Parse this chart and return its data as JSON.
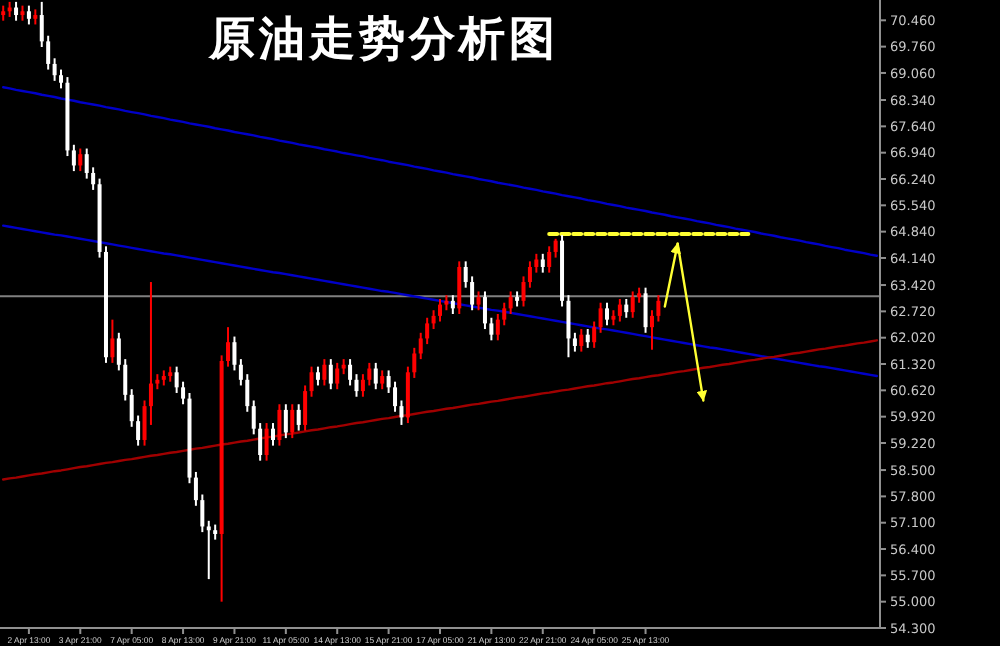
{
  "chart_data": {
    "type": "candlestick",
    "title": "原油走势分析图",
    "categories": [
      null,
      null,
      null,
      null,
      "2 Apr 13:00",
      null,
      null,
      null,
      null,
      null,
      null,
      null,
      "3 Apr 21:00",
      null,
      null,
      null,
      null,
      null,
      null,
      null,
      "7 Apr 05:00",
      null,
      null,
      null,
      null,
      null,
      null,
      null,
      "8 Apr 13:00",
      null,
      null,
      null,
      null,
      null,
      null,
      null,
      "9 Apr 21:00",
      null,
      null,
      null,
      null,
      null,
      null,
      null,
      "11 Apr 05:00",
      null,
      null,
      null,
      null,
      null,
      null,
      null,
      "14 Apr 13:00",
      null,
      null,
      null,
      null,
      null,
      null,
      null,
      "15 Apr 21:00",
      null,
      null,
      null,
      null,
      null,
      null,
      null,
      "17 Apr 05:00",
      null,
      null,
      null,
      null,
      null,
      null,
      null,
      "21 Apr 13:00",
      null,
      null,
      null,
      null,
      null,
      null,
      null,
      "22 Apr 21:00",
      null,
      null,
      null,
      null,
      null,
      null,
      null,
      "24 Apr 05:00",
      null,
      null,
      null,
      null,
      null,
      null,
      null,
      "25 Apr 13:00",
      null,
      null,
      null,
      null,
      null,
      null,
      null,
      null,
      null,
      null,
      null,
      null,
      null,
      null,
      null,
      null,
      null,
      null,
      null,
      null,
      null,
      null,
      null,
      null,
      null,
      null,
      null,
      null,
      null,
      null,
      null,
      null,
      null,
      null,
      null,
      null
    ],
    "ohlc": [
      [
        70.6,
        70.85,
        70.45,
        70.7
      ],
      [
        70.7,
        70.95,
        70.55,
        70.8
      ],
      [
        70.8,
        70.95,
        70.45,
        70.6
      ],
      [
        70.6,
        70.85,
        70.45,
        70.7
      ],
      [
        70.7,
        70.85,
        70.35,
        70.5
      ],
      [
        70.5,
        70.75,
        70.35,
        70.6
      ],
      [
        70.6,
        70.95,
        69.75,
        69.9
      ],
      [
        69.9,
        70.05,
        69.15,
        69.3
      ],
      [
        69.3,
        69.45,
        68.85,
        69.0
      ],
      [
        69.0,
        69.15,
        68.65,
        68.8
      ],
      [
        68.8,
        68.95,
        66.85,
        67.0
      ],
      [
        67.0,
        67.15,
        66.45,
        66.6
      ],
      [
        66.6,
        67.05,
        66.45,
        66.9
      ],
      [
        66.9,
        67.05,
        66.25,
        66.4
      ],
      [
        66.4,
        66.55,
        65.95,
        66.1
      ],
      [
        66.1,
        66.25,
        64.15,
        64.3
      ],
      [
        64.3,
        64.45,
        61.35,
        61.5
      ],
      [
        61.5,
        62.5,
        61.35,
        62.0
      ],
      [
        62.0,
        62.15,
        61.15,
        61.3
      ],
      [
        61.3,
        61.45,
        60.35,
        60.5
      ],
      [
        60.5,
        60.65,
        59.65,
        59.8
      ],
      [
        59.8,
        59.95,
        59.15,
        59.3
      ],
      [
        59.3,
        60.35,
        59.15,
        60.2
      ],
      [
        60.2,
        63.5,
        59.7,
        60.8
      ],
      [
        60.8,
        61.05,
        60.65,
        60.9
      ],
      [
        60.9,
        61.15,
        60.75,
        61.0
      ],
      [
        61.0,
        61.25,
        60.85,
        61.1
      ],
      [
        61.1,
        61.25,
        60.55,
        60.7
      ],
      [
        60.7,
        60.85,
        60.25,
        60.4
      ],
      [
        60.4,
        60.55,
        58.15,
        58.3
      ],
      [
        58.3,
        58.45,
        57.55,
        57.7
      ],
      [
        57.7,
        57.85,
        56.85,
        57.0
      ],
      [
        57.0,
        57.15,
        55.6,
        56.9
      ],
      [
        56.9,
        57.05,
        56.65,
        56.8
      ],
      [
        56.8,
        61.55,
        55.0,
        61.4
      ],
      [
        61.4,
        62.3,
        61.25,
        61.9
      ],
      [
        61.9,
        62.05,
        61.15,
        61.3
      ],
      [
        61.3,
        61.45,
        60.75,
        60.9
      ],
      [
        60.9,
        61.05,
        60.05,
        60.2
      ],
      [
        60.2,
        60.35,
        59.45,
        59.6
      ],
      [
        59.6,
        59.75,
        58.75,
        58.9
      ],
      [
        58.9,
        59.75,
        58.75,
        59.6
      ],
      [
        59.6,
        59.75,
        59.15,
        59.3
      ],
      [
        59.3,
        60.25,
        59.15,
        60.1
      ],
      [
        60.1,
        60.25,
        59.35,
        59.5
      ],
      [
        59.5,
        60.25,
        59.35,
        60.1
      ],
      [
        60.1,
        60.25,
        59.55,
        59.7
      ],
      [
        59.7,
        60.75,
        59.55,
        60.6
      ],
      [
        60.6,
        61.25,
        60.45,
        61.1
      ],
      [
        61.1,
        61.25,
        60.75,
        60.9
      ],
      [
        60.9,
        61.45,
        60.75,
        61.3
      ],
      [
        61.3,
        61.45,
        60.65,
        60.8
      ],
      [
        60.8,
        61.35,
        60.65,
        61.2
      ],
      [
        61.2,
        61.45,
        61.05,
        61.3
      ],
      [
        61.3,
        61.45,
        60.75,
        60.9
      ],
      [
        60.9,
        61.05,
        60.45,
        60.6
      ],
      [
        60.6,
        61.05,
        60.45,
        60.9
      ],
      [
        60.9,
        61.35,
        60.75,
        61.2
      ],
      [
        61.2,
        61.35,
        60.65,
        60.8
      ],
      [
        60.8,
        61.15,
        60.65,
        61.0
      ],
      [
        61.0,
        61.15,
        60.55,
        60.7
      ],
      [
        60.7,
        60.85,
        60.05,
        60.2
      ],
      [
        60.2,
        60.35,
        59.7,
        59.9
      ],
      [
        59.9,
        61.25,
        59.75,
        61.1
      ],
      [
        61.1,
        61.75,
        60.95,
        61.6
      ],
      [
        61.6,
        62.15,
        61.45,
        62.0
      ],
      [
        62.0,
        62.55,
        61.85,
        62.4
      ],
      [
        62.4,
        62.75,
        62.25,
        62.6
      ],
      [
        62.6,
        63.05,
        62.45,
        62.9
      ],
      [
        62.9,
        63.15,
        62.75,
        63.0
      ],
      [
        63.0,
        63.15,
        62.65,
        62.8
      ],
      [
        62.8,
        64.05,
        62.65,
        63.9
      ],
      [
        63.9,
        64.05,
        63.35,
        63.5
      ],
      [
        63.5,
        63.65,
        62.75,
        62.9
      ],
      [
        62.9,
        63.25,
        62.75,
        63.1
      ],
      [
        63.1,
        63.25,
        62.25,
        62.4
      ],
      [
        62.4,
        62.55,
        61.95,
        62.1
      ],
      [
        62.1,
        62.65,
        61.95,
        62.5
      ],
      [
        62.5,
        62.95,
        62.35,
        62.8
      ],
      [
        62.8,
        63.25,
        62.65,
        63.1
      ],
      [
        63.1,
        63.25,
        62.85,
        63.0
      ],
      [
        63.0,
        63.65,
        62.85,
        63.5
      ],
      [
        63.5,
        64.05,
        63.35,
        63.9
      ],
      [
        63.9,
        64.25,
        63.75,
        64.1
      ],
      [
        64.1,
        64.25,
        63.75,
        63.9
      ],
      [
        63.9,
        64.45,
        63.75,
        64.3
      ],
      [
        64.3,
        64.65,
        64.15,
        64.6
      ],
      [
        64.6,
        64.75,
        62.85,
        63.0
      ],
      [
        63.0,
        63.15,
        61.5,
        62.0
      ],
      [
        62.0,
        62.15,
        61.65,
        61.8
      ],
      [
        61.8,
        62.25,
        61.65,
        62.1
      ],
      [
        62.1,
        62.25,
        61.75,
        61.9
      ],
      [
        61.9,
        62.45,
        61.75,
        62.3
      ],
      [
        62.3,
        62.95,
        62.15,
        62.8
      ],
      [
        62.8,
        62.95,
        62.35,
        62.5
      ],
      [
        62.5,
        62.75,
        62.35,
        62.6
      ],
      [
        62.6,
        63.05,
        62.45,
        62.9
      ],
      [
        62.9,
        63.05,
        62.55,
        62.7
      ],
      [
        62.7,
        63.25,
        62.55,
        63.1
      ],
      [
        63.1,
        63.35,
        62.95,
        63.2
      ],
      [
        63.2,
        63.35,
        62.15,
        62.3
      ],
      [
        62.3,
        62.75,
        61.7,
        62.6
      ],
      [
        62.6,
        63.15,
        62.45,
        63.0
      ],
      null,
      null,
      null,
      null,
      null,
      null,
      null,
      null,
      null,
      null,
      null,
      null,
      null,
      null,
      null,
      null,
      null,
      null,
      null,
      null,
      null,
      null,
      null,
      null,
      null,
      null,
      null,
      null,
      null,
      null,
      null,
      null,
      null,
      null
    ],
    "colors": [
      "#ff0000",
      "#ff0000",
      "#ffffff",
      "#ff0000",
      "#ffffff",
      "#ff0000",
      "#ffffff",
      "#ffffff",
      "#ffffff",
      "#ffffff",
      "#ffffff",
      "#ffffff",
      "#ff0000",
      "#ffffff",
      "#ffffff",
      "#ffffff",
      "#ffffff",
      "#ff0000",
      "#ffffff",
      "#ffffff",
      "#ffffff",
      "#ffffff",
      "#ff0000",
      "#ff0000",
      "#ff0000",
      "#ff0000",
      "#ff0000",
      "#ffffff",
      "#ffffff",
      "#ffffff",
      "#ffffff",
      "#ffffff",
      "#ffffff",
      "#ffffff",
      "#ff0000",
      "#ff0000",
      "#ffffff",
      "#ffffff",
      "#ffffff",
      "#ffffff",
      "#ffffff",
      "#ff0000",
      "#ffffff",
      "#ff0000",
      "#ffffff",
      "#ff0000",
      "#ffffff",
      "#ff0000",
      "#ff0000",
      "#ffffff",
      "#ff0000",
      "#ffffff",
      "#ff0000",
      "#ff0000",
      "#ffffff",
      "#ffffff",
      "#ff0000",
      "#ff0000",
      "#ffffff",
      "#ff0000",
      "#ffffff",
      "#ffffff",
      "#ffffff",
      "#ff0000",
      "#ff0000",
      "#ff0000",
      "#ff0000",
      "#ff0000",
      "#ff0000",
      "#ff0000",
      "#ffffff",
      "#ff0000",
      "#ffffff",
      "#ffffff",
      "#ff0000",
      "#ffffff",
      "#ffffff",
      "#ff0000",
      "#ff0000",
      "#ff0000",
      "#ffffff",
      "#ff0000",
      "#ff0000",
      "#ff0000",
      "#ffffff",
      "#ff0000",
      "#ff0000",
      "#ffffff",
      "#ffffff",
      "#ffffff",
      "#ff0000",
      "#ffffff",
      "#ff0000",
      "#ff0000",
      "#ffffff",
      "#ff0000",
      "#ff0000",
      "#ffffff",
      "#ff0000",
      "#ff0000",
      "#ffffff",
      "#ff0000",
      "#ff0000",
      null,
      null,
      null,
      null,
      null,
      null,
      null,
      null,
      null,
      null,
      null,
      null,
      null,
      null,
      null,
      null,
      null,
      null,
      null,
      null,
      null,
      null,
      null,
      null,
      null,
      null,
      null,
      null,
      null,
      null,
      null,
      null,
      null,
      null
    ],
    "ylim": [
      54.3,
      71.0
    ],
    "yticks": [
      {
        "value": 70.46,
        "label": "70.460"
      },
      {
        "value": 69.76,
        "label": "69.760"
      },
      {
        "value": 69.06,
        "label": "69.060"
      },
      {
        "value": 68.34,
        "label": "68.340"
      },
      {
        "value": 67.64,
        "label": "67.640"
      },
      {
        "value": 66.94,
        "label": "66.940"
      },
      {
        "value": 66.24,
        "label": "66.240"
      },
      {
        "value": 65.54,
        "label": "65.540"
      },
      {
        "value": 64.84,
        "label": "64.840"
      },
      {
        "value": 64.14,
        "label": "64.140"
      },
      {
        "value": 63.42,
        "label": "63.420"
      },
      {
        "value": 62.72,
        "label": "62.720"
      },
      {
        "value": 62.02,
        "label": "62.020"
      },
      {
        "value": 61.32,
        "label": "61.320"
      },
      {
        "value": 60.62,
        "label": "60.620"
      },
      {
        "value": 59.92,
        "label": "59.920"
      },
      {
        "value": 59.22,
        "label": "59.220"
      },
      {
        "value": 58.5,
        "label": "58.500"
      },
      {
        "value": 57.8,
        "label": "57.800"
      },
      {
        "value": 57.1,
        "label": "57.100"
      },
      {
        "value": 56.4,
        "label": "56.400"
      },
      {
        "value": 55.7,
        "label": "55.700"
      },
      {
        "value": 55.0,
        "label": "55.000"
      },
      {
        "value": 54.3,
        "label": "54.300"
      }
    ],
    "ref_lines": [
      {
        "axis": "y",
        "value": 63.12,
        "color": "#808080"
      }
    ],
    "series": [
      {
        "type": "line",
        "color": "#0000c8",
        "values": [
          68.68,
          68.65,
          68.61,
          68.58,
          68.55,
          68.52,
          68.48,
          68.45,
          68.42,
          68.38,
          68.35,
          68.32,
          68.28,
          68.25,
          68.22,
          68.19,
          68.15,
          68.12,
          68.09,
          68.05,
          68.02,
          67.99,
          67.96,
          67.92,
          67.89,
          67.86,
          67.82,
          67.79,
          67.76,
          67.72,
          67.69,
          67.66,
          67.63,
          67.59,
          67.56,
          67.53,
          67.49,
          67.46,
          67.43,
          67.4,
          67.36,
          67.33,
          67.3,
          67.26,
          67.23,
          67.2,
          67.16,
          67.13,
          67.1,
          67.07,
          67.03,
          67.0,
          66.97,
          66.93,
          66.9,
          66.87,
          66.84,
          66.8,
          66.77,
          66.74,
          66.7,
          66.67,
          66.64,
          66.61,
          66.57,
          66.54,
          66.51,
          66.47,
          66.44,
          66.41,
          66.37,
          66.34,
          66.31,
          66.28,
          66.24,
          66.21,
          66.18,
          66.14,
          66.11,
          66.08,
          66.05,
          66.01,
          65.98,
          65.95,
          65.91,
          65.88,
          65.85,
          65.81,
          65.78,
          65.75,
          65.72,
          65.68,
          65.65,
          65.62,
          65.58,
          65.55,
          65.52,
          65.48,
          65.45,
          65.42,
          65.39,
          65.35,
          65.32,
          65.29,
          65.25,
          65.22,
          65.19,
          65.16,
          65.12,
          65.09,
          65.06,
          65.02,
          64.99,
          64.96,
          64.92,
          64.89,
          64.86,
          64.83,
          64.79,
          64.76,
          64.73,
          64.69,
          64.66,
          64.63,
          64.6,
          64.56,
          64.53,
          64.5,
          64.46,
          64.43,
          64.4,
          64.36,
          64.33,
          64.3,
          64.27,
          64.23,
          64.2
        ]
      },
      {
        "type": "line",
        "color": "#0000c8",
        "values": [
          65.0,
          64.97,
          64.94,
          64.91,
          64.88,
          64.85,
          64.82,
          64.79,
          64.76,
          64.74,
          64.71,
          64.68,
          64.65,
          64.62,
          64.59,
          64.56,
          64.53,
          64.5,
          64.47,
          64.44,
          64.41,
          64.38,
          64.35,
          64.32,
          64.29,
          64.26,
          64.24,
          64.21,
          64.18,
          64.15,
          64.12,
          64.09,
          64.06,
          64.03,
          64.0,
          63.97,
          63.94,
          63.91,
          63.88,
          63.85,
          63.82,
          63.79,
          63.76,
          63.74,
          63.71,
          63.68,
          63.65,
          63.62,
          63.59,
          63.56,
          63.53,
          63.5,
          63.47,
          63.44,
          63.41,
          63.38,
          63.35,
          63.32,
          63.29,
          63.26,
          63.24,
          63.21,
          63.18,
          63.15,
          63.12,
          63.09,
          63.06,
          63.03,
          63.0,
          62.97,
          62.94,
          62.91,
          62.88,
          62.85,
          62.82,
          62.79,
          62.76,
          62.74,
          62.71,
          62.68,
          62.65,
          62.62,
          62.59,
          62.56,
          62.53,
          62.5,
          62.47,
          62.44,
          62.41,
          62.38,
          62.35,
          62.32,
          62.29,
          62.26,
          62.24,
          62.21,
          62.18,
          62.15,
          62.12,
          62.09,
          62.06,
          62.03,
          62.0,
          61.97,
          61.94,
          61.91,
          61.88,
          61.85,
          61.82,
          61.79,
          61.76,
          61.74,
          61.71,
          61.68,
          61.65,
          61.62,
          61.59,
          61.56,
          61.53,
          61.5,
          61.47,
          61.44,
          61.41,
          61.38,
          61.35,
          61.32,
          61.29,
          61.26,
          61.24,
          61.21,
          61.18,
          61.15,
          61.12,
          61.09,
          61.06,
          61.03,
          61.0
        ]
      },
      {
        "type": "line",
        "color": "#a00000",
        "values": [
          58.25,
          58.28,
          58.3,
          58.33,
          58.36,
          58.39,
          58.41,
          58.44,
          58.47,
          58.49,
          58.52,
          58.55,
          58.58,
          58.6,
          58.63,
          58.66,
          58.69,
          58.71,
          58.74,
          58.77,
          58.79,
          58.82,
          58.85,
          58.88,
          58.9,
          58.93,
          58.96,
          58.98,
          59.01,
          59.04,
          59.07,
          59.09,
          59.12,
          59.15,
          59.18,
          59.2,
          59.23,
          59.26,
          59.28,
          59.31,
          59.34,
          59.37,
          59.39,
          59.42,
          59.45,
          59.47,
          59.5,
          59.53,
          59.56,
          59.58,
          59.61,
          59.64,
          59.66,
          59.69,
          59.72,
          59.75,
          59.77,
          59.8,
          59.83,
          59.86,
          59.88,
          59.91,
          59.94,
          59.96,
          59.99,
          60.02,
          60.05,
          60.07,
          60.1,
          60.13,
          60.15,
          60.18,
          60.21,
          60.24,
          60.26,
          60.29,
          60.32,
          60.34,
          60.37,
          60.4,
          60.43,
          60.45,
          60.48,
          60.51,
          60.54,
          60.56,
          60.59,
          60.62,
          60.64,
          60.67,
          60.7,
          60.73,
          60.75,
          60.78,
          60.81,
          60.83,
          60.86,
          60.89,
          60.92,
          60.94,
          60.97,
          61.0,
          61.02,
          61.05,
          61.08,
          61.11,
          61.13,
          61.16,
          61.19,
          61.22,
          61.24,
          61.27,
          61.3,
          61.32,
          61.35,
          61.38,
          61.41,
          61.43,
          61.46,
          61.49,
          61.51,
          61.54,
          61.57,
          61.6,
          61.62,
          61.65,
          61.68,
          61.71,
          61.73,
          61.76,
          61.79,
          61.81,
          61.84,
          61.87,
          61.89,
          61.92,
          61.95
        ]
      },
      {
        "type": "line",
        "color": "#ffff33",
        "line_style": "dashed",
        "values": [
          null,
          null,
          null,
          null,
          null,
          null,
          null,
          null,
          null,
          null,
          null,
          null,
          null,
          null,
          null,
          null,
          null,
          null,
          null,
          null,
          null,
          null,
          null,
          null,
          null,
          null,
          null,
          null,
          null,
          null,
          null,
          null,
          null,
          null,
          null,
          null,
          null,
          null,
          null,
          null,
          null,
          null,
          null,
          null,
          null,
          null,
          null,
          null,
          null,
          null,
          null,
          null,
          null,
          null,
          null,
          null,
          null,
          null,
          null,
          null,
          null,
          null,
          null,
          null,
          null,
          null,
          null,
          null,
          null,
          null,
          null,
          null,
          null,
          null,
          null,
          null,
          null,
          null,
          null,
          null,
          null,
          null,
          null,
          null,
          null,
          64.78,
          64.78,
          64.78,
          64.78,
          64.78,
          64.78,
          64.78,
          64.78,
          64.78,
          64.78,
          64.78,
          64.78,
          64.78,
          64.78,
          64.78,
          64.78,
          64.78,
          64.78,
          64.78,
          64.78,
          64.78,
          64.78,
          64.78,
          64.78,
          64.78,
          64.78,
          64.78,
          64.78,
          64.78,
          64.78,
          64.78,
          64.78,
          null,
          null,
          null,
          null,
          null,
          null,
          null,
          null,
          null,
          null,
          null,
          null,
          null,
          null,
          null,
          null,
          null,
          null,
          null,
          null
        ]
      },
      {
        "type": "line",
        "color": "#ffff33",
        "values": [
          null,
          null,
          null,
          null,
          null,
          null,
          null,
          null,
          null,
          null,
          null,
          null,
          null,
          null,
          null,
          null,
          null,
          null,
          null,
          null,
          null,
          null,
          null,
          null,
          null,
          null,
          null,
          null,
          null,
          null,
          null,
          null,
          null,
          null,
          null,
          null,
          null,
          null,
          null,
          null,
          null,
          null,
          null,
          null,
          null,
          null,
          null,
          null,
          null,
          null,
          null,
          null,
          null,
          null,
          null,
          null,
          null,
          null,
          null,
          null,
          null,
          null,
          null,
          null,
          null,
          null,
          null,
          null,
          null,
          null,
          null,
          null,
          null,
          null,
          null,
          null,
          null,
          null,
          null,
          null,
          null,
          null,
          null,
          null,
          null,
          null,
          null,
          null,
          null,
          null,
          null,
          null,
          null,
          null,
          null,
          null,
          null,
          null,
          null,
          null,
          null,
          null,
          null,
          62.85,
          63.69,
          64.52,
          null,
          null,
          null,
          null,
          null,
          null,
          null,
          null,
          null,
          null,
          null,
          null,
          null,
          null,
          null,
          null,
          null,
          null,
          null,
          null,
          null,
          null,
          null,
          null,
          null,
          null,
          null,
          null,
          null,
          null,
          null
        ]
      },
      {
        "type": "line",
        "color": "#ffff33",
        "values": [
          null,
          null,
          null,
          null,
          null,
          null,
          null,
          null,
          null,
          null,
          null,
          null,
          null,
          null,
          null,
          null,
          null,
          null,
          null,
          null,
          null,
          null,
          null,
          null,
          null,
          null,
          null,
          null,
          null,
          null,
          null,
          null,
          null,
          null,
          null,
          null,
          null,
          null,
          null,
          null,
          null,
          null,
          null,
          null,
          null,
          null,
          null,
          null,
          null,
          null,
          null,
          null,
          null,
          null,
          null,
          null,
          null,
          null,
          null,
          null,
          null,
          null,
          null,
          null,
          null,
          null,
          null,
          null,
          null,
          null,
          null,
          null,
          null,
          null,
          null,
          null,
          null,
          null,
          null,
          null,
          null,
          null,
          null,
          null,
          null,
          null,
          null,
          null,
          null,
          null,
          null,
          null,
          null,
          null,
          null,
          null,
          null,
          null,
          null,
          null,
          null,
          null,
          null,
          null,
          null,
          64.52,
          63.48,
          62.44,
          61.39,
          60.35,
          null,
          null,
          null,
          null,
          null,
          null,
          null,
          null,
          null,
          null,
          null,
          null,
          null,
          null,
          null,
          null,
          null,
          null,
          null,
          null,
          null,
          null,
          null,
          null,
          null,
          null,
          null
        ]
      }
    ]
  }
}
